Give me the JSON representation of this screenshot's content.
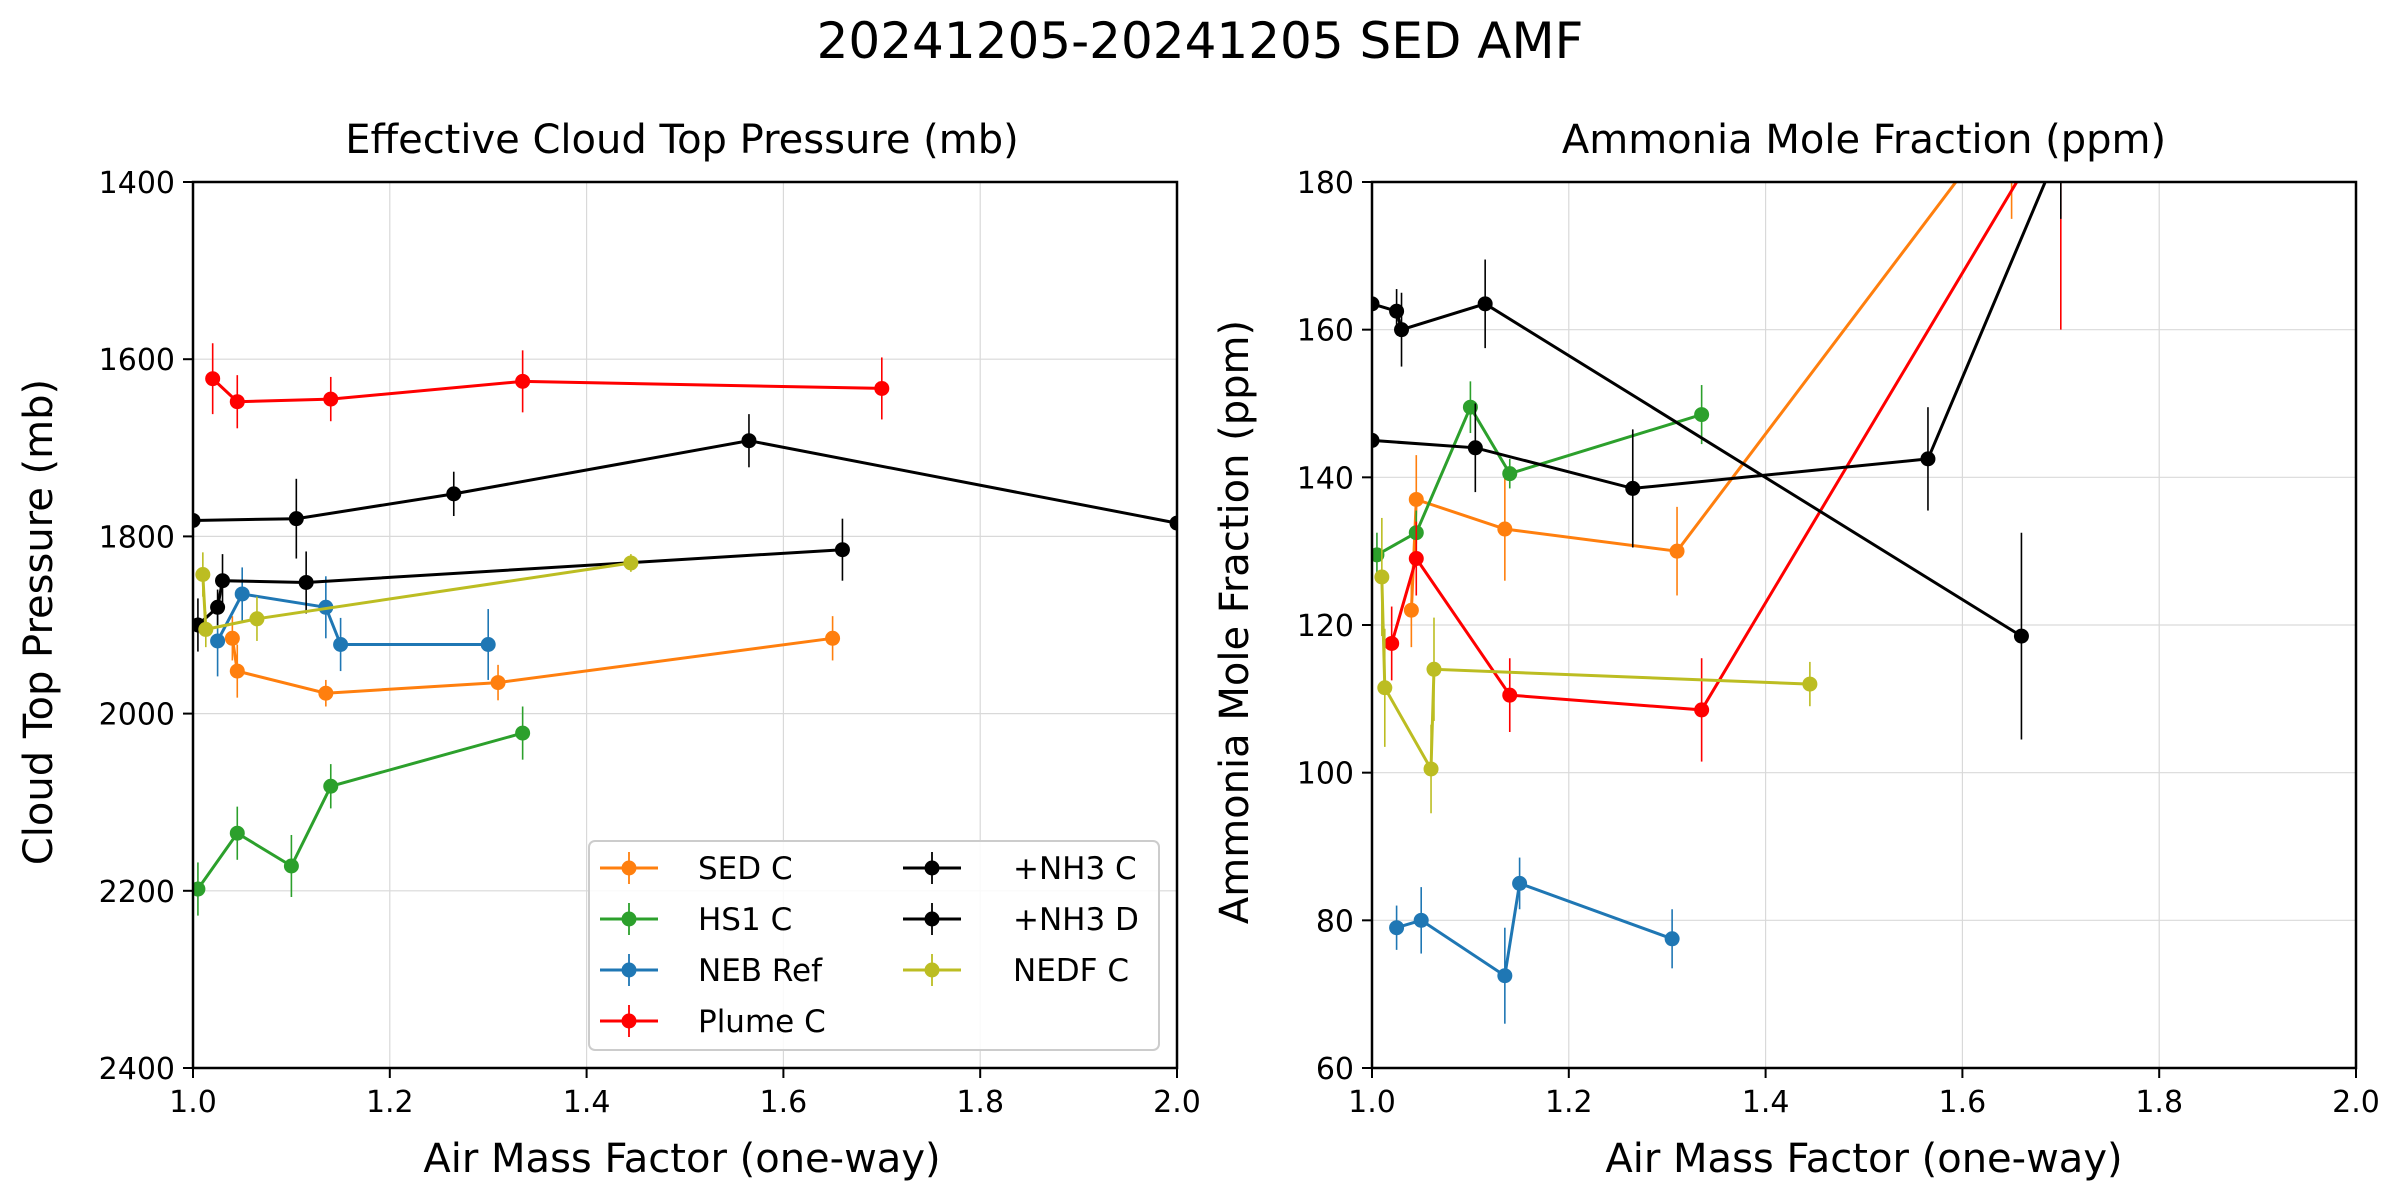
{
  "figure": {
    "suptitle": "20241205-20241205 SED AMF"
  },
  "chart_data": [
    {
      "type": "line",
      "title": "Effective Cloud Top Pressure (mb)",
      "xlabel": "Air Mass Factor (one-way)",
      "ylabel": "Cloud Top Pressure (mb)",
      "xlim": [
        1.0,
        2.0
      ],
      "ylim": [
        1400,
        2400
      ],
      "y_inverted": true,
      "grid": true,
      "xticks": [
        "1.0",
        "1.2",
        "1.4",
        "1.6",
        "1.8",
        "2.0"
      ],
      "yticks": [
        "1400",
        "1600",
        "1800",
        "2000",
        "2200",
        "2400"
      ],
      "legend": {
        "placement": "lower-right",
        "columns": 2
      },
      "series": [
        {
          "name": "SED C",
          "color": "#ff7f0e",
          "x": [
            1.04,
            1.045,
            1.135,
            1.31,
            1.65
          ],
          "y": [
            1915,
            1952,
            1977,
            1965,
            1915
          ],
          "err": [
            25,
            30,
            15,
            20,
            25
          ]
        },
        {
          "name": "HS1 C",
          "color": "#2ca02c",
          "x": [
            1.005,
            1.045,
            1.1,
            1.14,
            1.335
          ],
          "y": [
            2198,
            2135,
            2172,
            2082,
            2022
          ],
          "err": [
            30,
            30,
            35,
            25,
            30
          ]
        },
        {
          "name": "NEB Ref",
          "color": "#1f77b4",
          "x": [
            1.025,
            1.05,
            1.135,
            1.15,
            1.3
          ],
          "y": [
            1918,
            1865,
            1880,
            1922,
            1922
          ],
          "err": [
            40,
            30,
            35,
            30,
            40
          ]
        },
        {
          "name": "Plume C",
          "color": "#ff0000",
          "x": [
            1.02,
            1.045,
            1.14,
            1.335,
            1.7
          ],
          "y": [
            1622,
            1648,
            1645,
            1625,
            1633
          ],
          "err": [
            40,
            30,
            25,
            35,
            35
          ]
        },
        {
          "name": "+NH3 C",
          "color": "#000000",
          "x": [
            1.0,
            1.105,
            1.265,
            1.565,
            2.0
          ],
          "y": [
            1782,
            1780,
            1752,
            1692,
            1785
          ],
          "err": [
            50,
            45,
            25,
            30,
            0
          ]
        },
        {
          "name": "+NH3 D",
          "color": "#000000",
          "x": [
            1.005,
            1.025,
            1.03,
            1.115,
            1.66
          ],
          "y": [
            1900,
            1880,
            1850,
            1852,
            1815
          ],
          "err": [
            30,
            20,
            30,
            35,
            35
          ]
        },
        {
          "name": "NEDF C",
          "color": "#bcbd22",
          "x": [
            1.01,
            1.013,
            1.065,
            1.445
          ],
          "y": [
            1843,
            1905,
            1893,
            1830
          ],
          "err": [
            25,
            20,
            25,
            10
          ]
        }
      ]
    },
    {
      "type": "line",
      "title": "Ammonia Mole Fraction (ppm)",
      "xlabel": "Air Mass Factor (one-way)",
      "ylabel": "Ammonia Mole Fraction (ppm)",
      "xlim": [
        1.0,
        2.0
      ],
      "ylim": [
        60,
        180
      ],
      "grid": true,
      "xticks": [
        "1.0",
        "1.2",
        "1.4",
        "1.6",
        "1.8",
        "2.0"
      ],
      "yticks": [
        "60",
        "80",
        "100",
        "120",
        "140",
        "160",
        "180"
      ],
      "series": [
        {
          "name": "SED C",
          "color": "#ff7f0e",
          "x": [
            1.04,
            1.045,
            1.135,
            1.31,
            1.65
          ],
          "y": [
            122,
            137,
            133,
            130,
            190
          ],
          "err": [
            5,
            6,
            7,
            6,
            15
          ]
        },
        {
          "name": "HS1 C",
          "color": "#2ca02c",
          "x": [
            1.005,
            1.045,
            1.1,
            1.14,
            1.335
          ],
          "y": [
            129.5,
            132.5,
            149.5,
            140.5,
            148.5
          ],
          "err": [
            3,
            3,
            3.5,
            2,
            4
          ]
        },
        {
          "name": "NEB Ref",
          "color": "#1f77b4",
          "x": [
            1.025,
            1.05,
            1.135,
            1.15,
            1.305
          ],
          "y": [
            79,
            80,
            72.5,
            85,
            77.5
          ],
          "err": [
            3,
            4.5,
            6.5,
            3.5,
            4
          ]
        },
        {
          "name": "Plume C",
          "color": "#ff0000",
          "x": [
            1.02,
            1.045,
            1.14,
            1.335,
            1.7
          ],
          "y": [
            117.5,
            129,
            110.5,
            108.5,
            190
          ],
          "err": [
            5,
            5,
            5,
            7,
            30
          ]
        },
        {
          "name": "+NH3 C",
          "color": "#000000",
          "x": [
            1.0,
            1.025,
            1.03,
            1.115,
            1.66
          ],
          "y": [
            163.5,
            162.5,
            160,
            163.5,
            118.5
          ],
          "err": [
            5,
            3,
            5,
            6,
            14
          ]
        },
        {
          "name": "+NH3 D",
          "color": "#000000",
          "x": [
            1.0,
            1.105,
            1.265,
            1.565,
            1.7
          ],
          "y": [
            145,
            144,
            138.5,
            142.5,
            185
          ],
          "err": [
            4,
            6,
            8,
            7,
            10
          ]
        },
        {
          "name": "NEDF C",
          "color": "#bcbd22",
          "x": [
            1.01,
            1.013,
            1.06,
            1.063,
            1.445
          ],
          "y": [
            126.5,
            111.5,
            100.5,
            114,
            112
          ],
          "err": [
            8,
            8,
            6,
            7,
            3
          ]
        }
      ]
    }
  ]
}
